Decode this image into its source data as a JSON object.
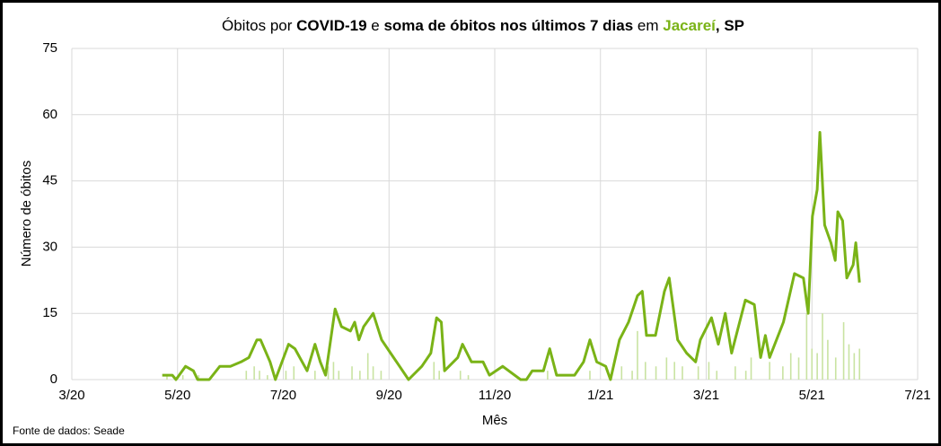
{
  "chart_data": {
    "type": "line",
    "title_parts": [
      "Óbitos por ",
      "COVID-19",
      " e ",
      "soma de óbitos nos últimos 7 dias",
      " em ",
      "Jacareí",
      ", SP"
    ],
    "title_green": "#7ab317",
    "y_label": "Número de óbitos",
    "x_label": "Mês",
    "source": "Fonte de dados: Seade",
    "xlim": [
      0,
      16
    ],
    "xticks": [
      {
        "value": 0,
        "label": "3/20"
      },
      {
        "value": 2,
        "label": "5/20"
      },
      {
        "value": 4,
        "label": "7/20"
      },
      {
        "value": 6,
        "label": "9/20"
      },
      {
        "value": 8,
        "label": "11/20"
      },
      {
        "value": 10,
        "label": "1/21"
      },
      {
        "value": 12,
        "label": "3/21"
      },
      {
        "value": 14,
        "label": "5/21"
      },
      {
        "value": 16,
        "label": "7/21"
      }
    ],
    "ylim": [
      0,
      75
    ],
    "yticks": [
      0,
      15,
      30,
      45,
      60,
      75
    ],
    "grid": true,
    "series": [
      {
        "type": "bar",
        "color": "#c9e3a2",
        "x": [
          1.8,
          2.1,
          2.4,
          3.3,
          3.45,
          3.55,
          3.7,
          4.05,
          4.2,
          4.6,
          4.85,
          4.95,
          5.05,
          5.3,
          5.45,
          5.6,
          5.7,
          5.85,
          6.85,
          6.95,
          7.35,
          7.5,
          9.0,
          9.8,
          10.4,
          10.6,
          10.7,
          10.85,
          11.05,
          11.25,
          11.4,
          11.55,
          11.85,
          12.05,
          12.2,
          12.55,
          12.75,
          12.85,
          13.2,
          13.45,
          13.6,
          13.75,
          13.9,
          14.0,
          14.1,
          14.2,
          14.3,
          14.45,
          14.6,
          14.7,
          14.8,
          14.9
        ],
        "values": [
          1,
          1,
          1,
          2,
          3,
          2,
          1,
          2,
          3,
          2,
          3,
          4,
          2,
          3,
          2,
          6,
          3,
          2,
          4,
          2,
          2,
          1,
          2,
          2,
          3,
          2,
          11,
          4,
          3,
          5,
          4,
          3,
          3,
          4,
          2,
          3,
          2,
          5,
          4,
          3,
          6,
          5,
          15,
          7,
          6,
          15,
          9,
          5,
          13,
          8,
          6,
          7
        ]
      },
      {
        "type": "line",
        "color": "#7ab317",
        "x": [
          1.71,
          1.9,
          1.97,
          2.15,
          2.3,
          2.38,
          2.6,
          2.8,
          3.0,
          3.2,
          3.35,
          3.5,
          3.57,
          3.75,
          3.85,
          4.1,
          4.22,
          4.45,
          4.6,
          4.7,
          4.8,
          4.98,
          5.1,
          5.27,
          5.35,
          5.43,
          5.52,
          5.7,
          5.86,
          6.03,
          6.2,
          6.37,
          6.62,
          6.79,
          6.9,
          6.99,
          7.05,
          7.3,
          7.39,
          7.56,
          7.78,
          7.9,
          8.15,
          8.49,
          8.6,
          8.71,
          8.92,
          9.04,
          9.17,
          9.51,
          9.68,
          9.8,
          9.93,
          10.1,
          10.19,
          10.36,
          10.53,
          10.7,
          10.79,
          10.87,
          11.04,
          11.21,
          11.3,
          11.46,
          11.63,
          11.8,
          11.89,
          12.1,
          12.23,
          12.36,
          12.48,
          12.74,
          12.91,
          13.03,
          13.12,
          13.2,
          13.46,
          13.67,
          13.84,
          13.93,
          14.01,
          14.1,
          14.15,
          14.24,
          14.36,
          14.44,
          14.49,
          14.58,
          14.66,
          14.78,
          14.83,
          14.9
        ],
        "values": [
          1,
          1,
          0,
          3,
          2,
          0,
          0,
          3,
          3,
          4,
          5,
          9,
          9,
          4,
          0,
          8,
          7,
          2,
          8,
          4,
          1,
          16,
          12,
          11,
          13,
          9,
          12,
          15,
          9,
          6,
          3,
          0,
          3,
          6,
          14,
          13,
          2,
          5,
          8,
          4,
          4,
          1,
          3,
          0,
          0,
          2,
          2,
          7,
          1,
          1,
          4,
          9,
          4,
          3,
          0,
          9,
          13,
          19,
          20,
          10,
          10,
          20,
          23,
          9,
          6,
          4,
          9,
          14,
          8,
          15,
          6,
          18,
          17,
          5,
          10,
          5,
          13,
          24,
          23,
          15,
          37,
          43,
          56,
          35,
          31,
          27,
          38,
          36,
          23,
          26,
          31,
          22
        ]
      }
    ]
  }
}
